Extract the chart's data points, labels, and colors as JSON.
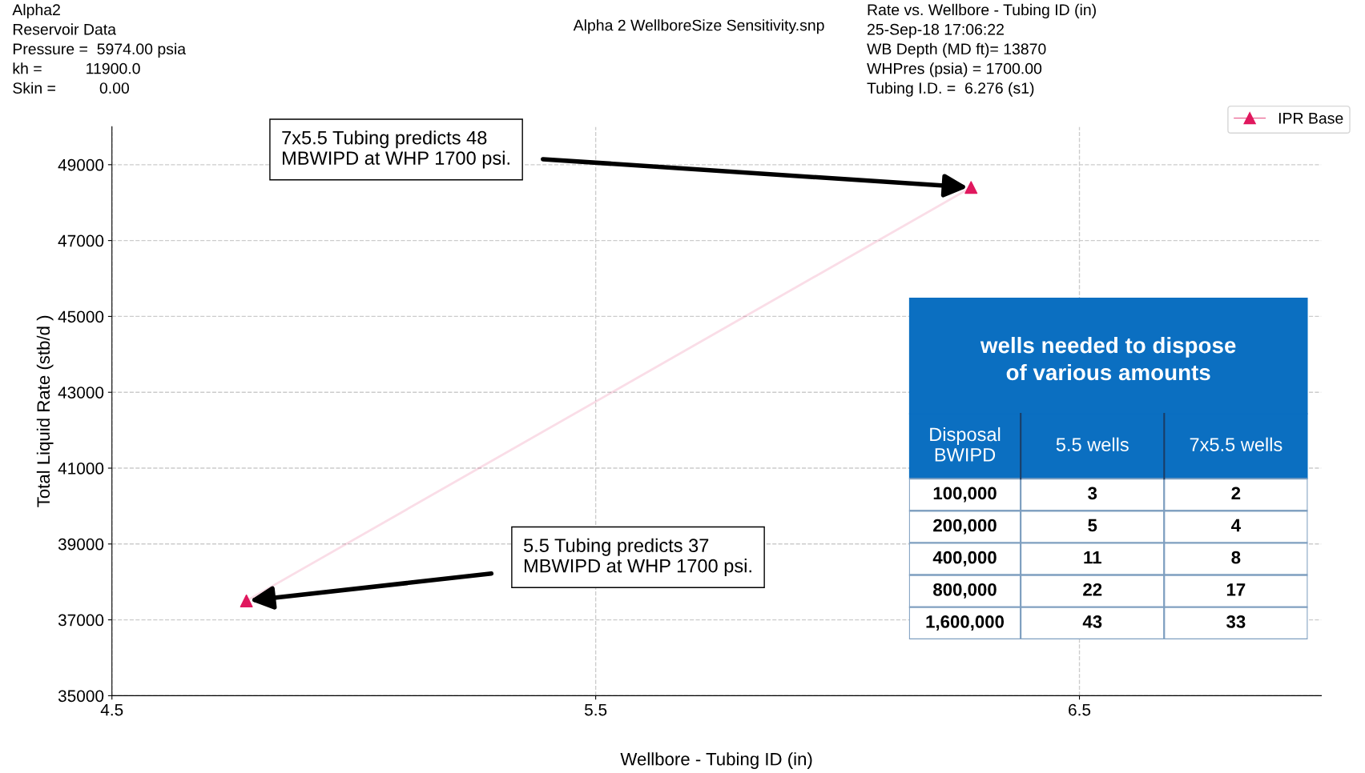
{
  "chart_data": [
    {
      "type": "line",
      "title": "Alpha 2 WellboreSize Sensitivity.snp",
      "xlabel": "Wellbore - Tubing ID (in)",
      "ylabel": "Total Liquid Rate (stb/d )",
      "annotations": [
        "Alpha2\nReservoir Data\nPressure =  5974.00 psia\nkh =          11900.0\nSkin =          0.00",
        "Rate vs. Wellbore - Tubing ID (in)\n25-Sep-18 17:06:22\nWB Depth (MD ft)= 13870\nWHPres (psia) = 1700.00\nTubing I.D. =  6.276 (s1)",
        "7x5.5 Tubing predicts 48\nMBWIPD at WHP 1700 psi.",
        "5.5 Tubing predicts 37\nMBWIPD at WHP 1700 psi."
      ],
      "series": [
        {
          "name": "IPR Base",
          "color": "#e0185e",
          "x": [
            4.778,
            6.276
          ],
          "values": [
            37500,
            48400
          ],
          "marker": "triangle"
        }
      ],
      "xlim": [
        4.5,
        7.0
      ],
      "xticks": [
        4.5,
        5.5,
        6.5
      ],
      "ylim": [
        35000,
        50000
      ],
      "yticks": [
        35000,
        37000,
        39000,
        41000,
        43000,
        45000,
        47000,
        49000
      ],
      "grid": true,
      "legend": "top right"
    },
    {
      "type": "other",
      "title": "wells needed to dispose of various amounts",
      "categories": [
        "Disposal\nBWIPD",
        "5.5 wells",
        "7x5.5 wells"
      ],
      "annotations": [
        "100,000",
        "3",
        "2",
        "200,000",
        "5",
        "4",
        "400,000",
        "11",
        "8",
        "800,000",
        "22",
        "17",
        "1,600,000",
        "43",
        "33"
      ]
    }
  ]
}
